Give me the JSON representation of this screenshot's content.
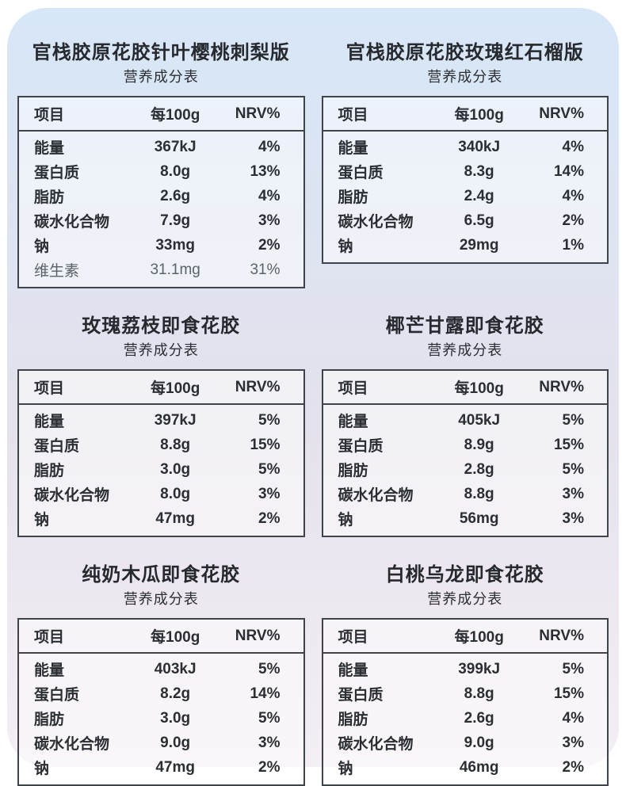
{
  "colors": {
    "page_background": "#ffffff",
    "card_gradient_top": "#d7e7f8",
    "card_gradient_middle": "#e4e2ec",
    "card_gradient_bottom": "#f4eef5",
    "table_border": "#3f434a",
    "text": "#2b2e33",
    "muted_text": "#5d6168"
  },
  "columns": {
    "item": "项目",
    "per": "每100g",
    "nrv": "NRV%"
  },
  "sections": [
    {
      "title": "官栈胶原花胶针叶樱桃刺梨版",
      "subtitle": "营养成分表",
      "rows": [
        {
          "name": "能量",
          "value": "367kJ",
          "nrv": "4%"
        },
        {
          "name": "蛋白质",
          "value": "8.0g",
          "nrv": "13%"
        },
        {
          "name": "脂肪",
          "value": "2.6g",
          "nrv": "4%"
        },
        {
          "name": "碳水化合物",
          "value": "7.9g",
          "nrv": "3%"
        },
        {
          "name": "钠",
          "value": "33mg",
          "nrv": "2%"
        },
        {
          "name": "维生素",
          "value": "31.1mg",
          "nrv": "31%",
          "muted": true
        }
      ]
    },
    {
      "title": "官栈胶原花胶玫瑰红石榴版",
      "subtitle": "营养成分表",
      "rows": [
        {
          "name": "能量",
          "value": "340kJ",
          "nrv": "4%"
        },
        {
          "name": "蛋白质",
          "value": "8.3g",
          "nrv": "14%"
        },
        {
          "name": "脂肪",
          "value": "2.4g",
          "nrv": "4%"
        },
        {
          "name": "碳水化合物",
          "value": "6.5g",
          "nrv": "2%"
        },
        {
          "name": "钠",
          "value": "29mg",
          "nrv": "1%"
        }
      ]
    },
    {
      "title": "玫瑰荔枝即食花胶",
      "subtitle": "营养成分表",
      "rows": [
        {
          "name": "能量",
          "value": "397kJ",
          "nrv": "5%"
        },
        {
          "name": "蛋白质",
          "value": "8.8g",
          "nrv": "15%"
        },
        {
          "name": "脂肪",
          "value": "3.0g",
          "nrv": "5%"
        },
        {
          "name": "碳水化合物",
          "value": "8.0g",
          "nrv": "3%"
        },
        {
          "name": "钠",
          "value": "47mg",
          "nrv": "2%"
        }
      ]
    },
    {
      "title": "椰芒甘露即食花胶",
      "subtitle": "营养成分表",
      "rows": [
        {
          "name": "能量",
          "value": "405kJ",
          "nrv": "5%"
        },
        {
          "name": "蛋白质",
          "value": "8.9g",
          "nrv": "15%"
        },
        {
          "name": "脂肪",
          "value": "2.8g",
          "nrv": "5%"
        },
        {
          "name": "碳水化合物",
          "value": "8.8g",
          "nrv": "3%"
        },
        {
          "name": "钠",
          "value": "56mg",
          "nrv": "3%"
        }
      ]
    },
    {
      "title": "纯奶木瓜即食花胶",
      "subtitle": "营养成分表",
      "rows": [
        {
          "name": "能量",
          "value": "403kJ",
          "nrv": "5%"
        },
        {
          "name": "蛋白质",
          "value": "8.2g",
          "nrv": "14%"
        },
        {
          "name": "脂肪",
          "value": "3.0g",
          "nrv": "5%"
        },
        {
          "name": "碳水化合物",
          "value": "9.0g",
          "nrv": "3%"
        },
        {
          "name": "钠",
          "value": "47mg",
          "nrv": "2%"
        }
      ]
    },
    {
      "title": "白桃乌龙即食花胶",
      "subtitle": "营养成分表",
      "rows": [
        {
          "name": "能量",
          "value": "399kJ",
          "nrv": "5%"
        },
        {
          "name": "蛋白质",
          "value": "8.8g",
          "nrv": "15%"
        },
        {
          "name": "脂肪",
          "value": "2.6g",
          "nrv": "4%"
        },
        {
          "name": "碳水化合物",
          "value": "9.0g",
          "nrv": "3%"
        },
        {
          "name": "钠",
          "value": "46mg",
          "nrv": "2%"
        }
      ]
    }
  ]
}
